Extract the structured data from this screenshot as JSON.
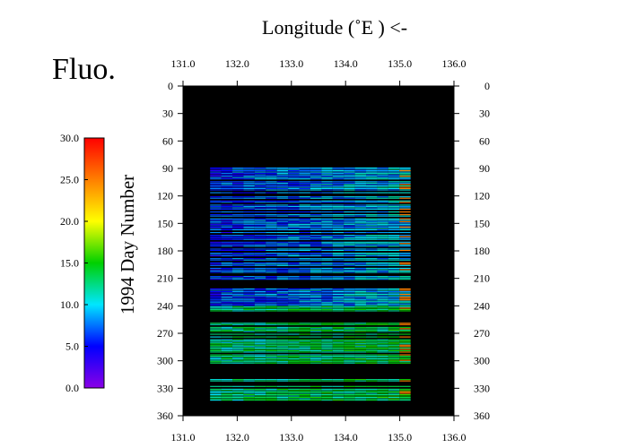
{
  "chart_data": {
    "type": "heatmap",
    "title": "Fluo.",
    "xlabel": "Longitude  (˚E ) <-",
    "ylabel": "1994  Day Number",
    "xlim": [
      131.0,
      136.0
    ],
    "ylim": [
      0,
      360
    ],
    "y_inverted": true,
    "x_ticks": [
      "131.0",
      "132.0",
      "133.0",
      "134.0",
      "135.0",
      "136.0"
    ],
    "y_ticks": [
      "0",
      "30",
      "60",
      "90",
      "120",
      "150",
      "180",
      "210",
      "240",
      "270",
      "300",
      "330",
      "360"
    ],
    "colorbar": {
      "min": 0.0,
      "max": 30.0,
      "ticks": [
        "0.0",
        "5.0",
        "10.0",
        "15.0",
        "20.0",
        "25.0",
        "30.0"
      ],
      "colors": [
        "#8a00e6",
        "#0000ff",
        "#00e6ff",
        "#00d000",
        "#ffff00",
        "#ff7f00",
        "#ff0000"
      ]
    },
    "background_color": "#000000",
    "data_extent": {
      "lon": [
        131.5,
        135.2
      ],
      "day": [
        88,
        343
      ]
    },
    "data_gaps_days": [
      [
        213,
        220
      ],
      [
        247,
        258
      ],
      [
        304,
        318
      ]
    ],
    "typical_values": {
      "west_91_to_240": 6,
      "east_91_to_240": 10,
      "days_240_to_343": 13,
      "far_east_edge": 25
    }
  }
}
